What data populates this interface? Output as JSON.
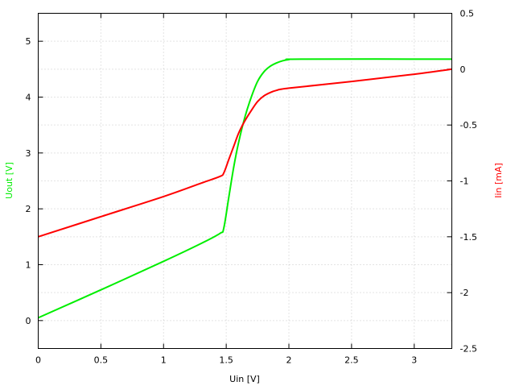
{
  "chart_data": {
    "type": "line",
    "title": "",
    "xlabel": "Uin [V]",
    "ylabel_left": "Uout [V]",
    "ylabel_right": "Iin [mA]",
    "xlim": [
      0,
      3.3
    ],
    "ylim_left": [
      -0.5,
      5.5
    ],
    "ylim_right": [
      -2.5,
      0.5
    ],
    "grid": true,
    "x_ticks": [
      0,
      0.5,
      1,
      1.5,
      2,
      2.5,
      3
    ],
    "x_tick_labels": [
      "0",
      "0.5",
      "1",
      "1.5",
      "2",
      "2.5",
      "3"
    ],
    "y_left_ticks": [
      0,
      1,
      2,
      3,
      4,
      5
    ],
    "y_left_tick_labels": [
      "0",
      "1",
      "2",
      "3",
      "4",
      "5"
    ],
    "y_right_ticks": [
      0.5,
      0,
      -0.5,
      -1,
      -1.5,
      -2,
      -2.5
    ],
    "y_right_tick_labels": [
      "0.5",
      "0",
      "-0.5",
      "-1",
      "-1.5",
      "-2",
      "-2.5"
    ],
    "colors": {
      "uout": "#00ee00",
      "iin": "#ff0000",
      "grid": "#c8c8c8"
    },
    "series": [
      {
        "axis": "left",
        "color": "#00ee00",
        "points": [
          [
            0,
            0.05
          ],
          [
            0.5,
            0.55
          ],
          [
            1.0,
            1.06
          ],
          [
            1.3,
            1.38
          ],
          [
            1.45,
            1.56
          ],
          [
            1.48,
            1.65
          ],
          [
            1.52,
            2.2
          ],
          [
            1.56,
            2.75
          ],
          [
            1.6,
            3.2
          ],
          [
            1.65,
            3.65
          ],
          [
            1.7,
            4.0
          ],
          [
            1.75,
            4.28
          ],
          [
            1.8,
            4.45
          ],
          [
            1.85,
            4.55
          ],
          [
            1.9,
            4.61
          ],
          [
            1.95,
            4.65
          ],
          [
            2.0,
            4.67
          ],
          [
            2.1,
            4.68
          ],
          [
            3.3,
            4.68
          ]
        ]
      },
      {
        "axis": "right",
        "color": "#ff0000",
        "points": [
          [
            0,
            -1.5
          ],
          [
            0.5,
            -1.32
          ],
          [
            1.0,
            -1.14
          ],
          [
            1.3,
            -1.02
          ],
          [
            1.45,
            -0.96
          ],
          [
            1.48,
            -0.93
          ],
          [
            1.52,
            -0.81
          ],
          [
            1.56,
            -0.69
          ],
          [
            1.6,
            -0.57
          ],
          [
            1.65,
            -0.46
          ],
          [
            1.7,
            -0.37
          ],
          [
            1.75,
            -0.29
          ],
          [
            1.8,
            -0.24
          ],
          [
            1.85,
            -0.21
          ],
          [
            1.9,
            -0.19
          ],
          [
            2.0,
            -0.17
          ],
          [
            2.5,
            -0.11
          ],
          [
            3.0,
            -0.045
          ],
          [
            3.3,
            0.0
          ]
        ]
      }
    ]
  }
}
